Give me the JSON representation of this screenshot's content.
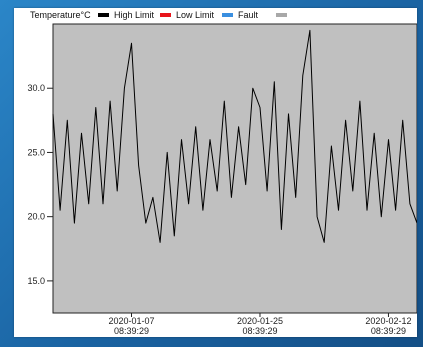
{
  "legend": {
    "title": "Temperature°C",
    "items": [
      {
        "label": "High Limit",
        "color": "#000000"
      },
      {
        "label": "Low Limit",
        "color": "#e8151b"
      },
      {
        "label": "Fault",
        "color": "#3a8fe0"
      },
      {
        "label": "",
        "color": "#a8a8a8"
      }
    ]
  },
  "chart_data": {
    "type": "line",
    "title": "",
    "xlabel": "",
    "ylabel": "",
    "y_ticks": [
      15.0,
      20.0,
      25.0,
      30.0
    ],
    "y_tick_labels": [
      "15.0",
      "20.0",
      "25.0",
      "30.0"
    ],
    "ylim": [
      12.5,
      35.0
    ],
    "xlim": [
      "2019-12-27",
      "2020-02-16"
    ],
    "x_ticks": [
      {
        "date": "2020-01-07",
        "label_date": "2020-01-07",
        "label_time": "08:39:29"
      },
      {
        "date": "2020-01-25",
        "label_date": "2020-01-25",
        "label_time": "08:39:29"
      },
      {
        "date": "2020-02-12",
        "label_date": "2020-02-12",
        "label_time": "08:39:29"
      }
    ],
    "grid": false,
    "plot_background": "#c0c0c0",
    "legend_position": "top-left",
    "series": [
      {
        "name": "Temperature°C",
        "color": "#000000",
        "x": [
          "2019-12-27",
          "2019-12-28",
          "2019-12-29",
          "2019-12-30",
          "2019-12-31",
          "2020-01-01",
          "2020-01-02",
          "2020-01-03",
          "2020-01-04",
          "2020-01-05",
          "2020-01-06",
          "2020-01-07",
          "2020-01-08",
          "2020-01-09",
          "2020-01-10",
          "2020-01-11",
          "2020-01-12",
          "2020-01-13",
          "2020-01-14",
          "2020-01-15",
          "2020-01-16",
          "2020-01-17",
          "2020-01-18",
          "2020-01-19",
          "2020-01-20",
          "2020-01-21",
          "2020-01-22",
          "2020-01-23",
          "2020-01-24",
          "2020-01-25",
          "2020-01-26",
          "2020-01-27",
          "2020-01-28",
          "2020-01-29",
          "2020-01-30",
          "2020-01-31",
          "2020-02-01",
          "2020-02-02",
          "2020-02-03",
          "2020-02-04",
          "2020-02-05",
          "2020-02-06",
          "2020-02-07",
          "2020-02-08",
          "2020-02-09",
          "2020-02-10",
          "2020-02-11",
          "2020-02-12",
          "2020-02-13",
          "2020-02-14",
          "2020-02-15",
          "2020-02-16"
        ],
        "values": [
          28.0,
          20.5,
          27.5,
          19.5,
          26.5,
          21.0,
          28.5,
          21.0,
          29.0,
          22.0,
          30.0,
          33.5,
          24.0,
          19.5,
          21.5,
          18.0,
          25.0,
          18.5,
          26.0,
          21.0,
          27.0,
          20.5,
          26.0,
          22.0,
          29.0,
          21.5,
          27.0,
          22.5,
          30.0,
          28.5,
          22.0,
          30.5,
          19.0,
          28.0,
          21.5,
          31.0,
          34.5,
          20.0,
          18.0,
          25.5,
          20.5,
          27.5,
          22.0,
          29.0,
          20.5,
          26.5,
          20.0,
          26.0,
          20.5,
          27.5,
          21.0,
          19.5
        ]
      }
    ]
  }
}
